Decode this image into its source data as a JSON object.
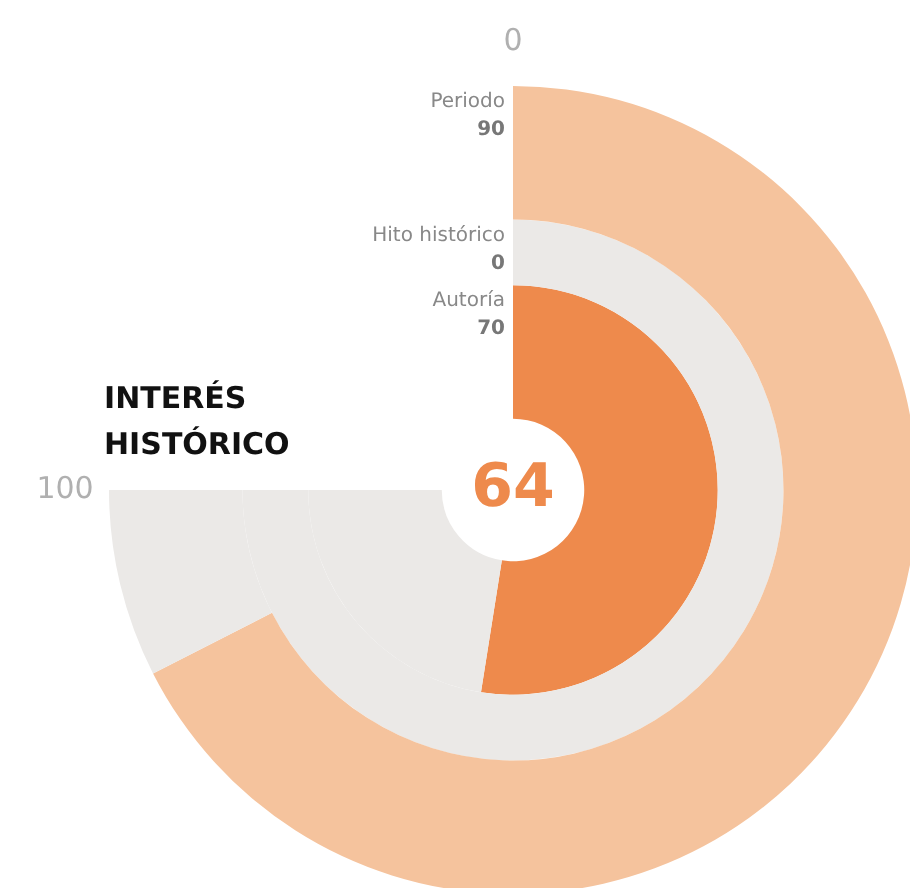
{
  "chart_data": {
    "type": "other",
    "title": "INTERÉS HISTÓRICO",
    "categories": [
      "Periodo",
      "Hito histórico",
      "Autoría"
    ],
    "values": [
      90,
      0,
      70
    ],
    "colors": [
      "#f5c39d",
      "#ee8a4c",
      "#ee8a4c"
    ],
    "data_labels": true,
    "annotations": [
      "0",
      "100",
      "64"
    ]
  }
}
